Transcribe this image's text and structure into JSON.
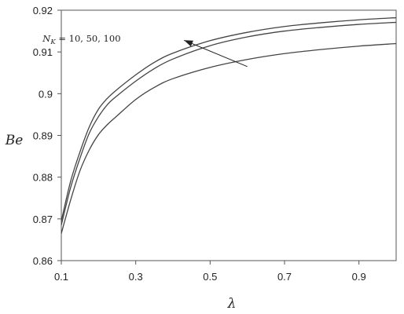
{
  "chart_data": {
    "type": "line",
    "xlabel": "λ",
    "ylabel": "Be",
    "xlim": [
      0.1,
      1.0
    ],
    "ylim": [
      0.86,
      0.92
    ],
    "xticks": [
      0.1,
      0.3,
      0.5,
      0.7,
      0.9
    ],
    "yticks": [
      0.86,
      0.87,
      0.88,
      0.89,
      0.9,
      0.91,
      0.92
    ],
    "xtick_labels": [
      "0.1",
      "0.3",
      "0.5",
      "0.7",
      "0.9"
    ],
    "ytick_labels": [
      "0.86",
      "0.87",
      "0.88",
      "0.89",
      "0.9",
      "0.91",
      "0.92"
    ],
    "grid": false,
    "line_color": "#444444",
    "x": [
      0.1,
      0.125,
      0.15,
      0.175,
      0.2,
      0.225,
      0.25,
      0.3,
      0.35,
      0.4,
      0.5,
      0.6,
      0.7,
      0.8,
      0.9,
      1.0
    ],
    "series": [
      {
        "values": [
          0.8665,
          0.8745,
          0.8815,
          0.8865,
          0.8902,
          0.8927,
          0.8947,
          0.8986,
          0.9015,
          0.9036,
          0.9063,
          0.9082,
          0.9096,
          0.9106,
          0.9114,
          0.912
        ]
      },
      {
        "values": [
          0.8685,
          0.8775,
          0.8845,
          0.8905,
          0.8945,
          0.8975,
          0.8995,
          0.903,
          0.906,
          0.9083,
          0.9115,
          0.9136,
          0.915,
          0.9159,
          0.9166,
          0.9171
        ]
      },
      {
        "values": [
          0.8695,
          0.879,
          0.886,
          0.892,
          0.8963,
          0.899,
          0.901,
          0.9045,
          0.9075,
          0.9097,
          0.9127,
          0.9147,
          0.9161,
          0.917,
          0.9177,
          0.9182
        ]
      }
    ],
    "annotation": {
      "label_prefix": "N",
      "label_subscript": "K",
      "label_values": " = 10, 50, 100",
      "arrow_from": [
        0.6,
        0.9065
      ],
      "arrow_to": [
        0.43,
        0.9128
      ],
      "text_anchor": [
        0.145,
        0.9125
      ]
    }
  }
}
